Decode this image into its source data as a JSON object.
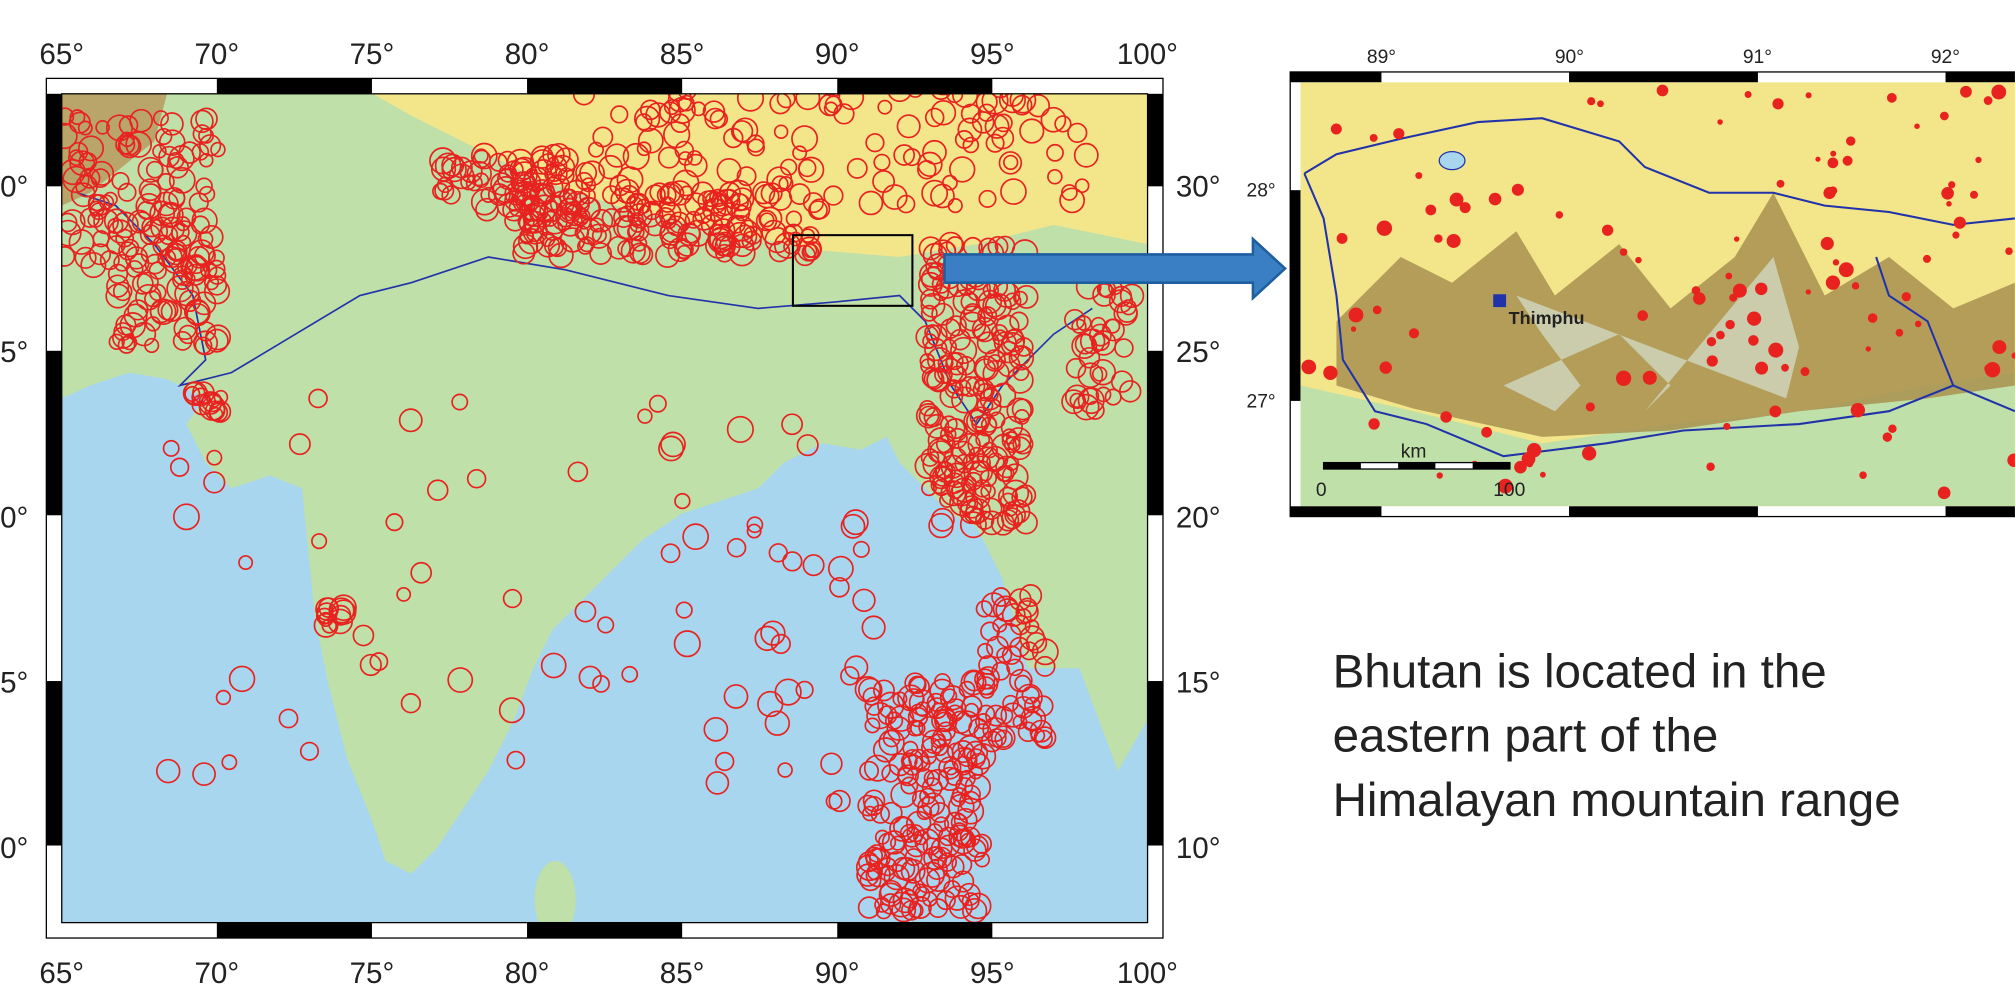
{
  "main_map": {
    "lon_labels_top": [
      "65°",
      "70°",
      "75°",
      "80°",
      "85°",
      "90°",
      "95°",
      "100°"
    ],
    "lon_labels_bottom": [
      "65°",
      "70°",
      "75°",
      "80°",
      "85°",
      "90°",
      "95°",
      "100°"
    ],
    "lat_labels_left": [
      "0°",
      "5°",
      "0°",
      "5°",
      "0°"
    ],
    "lat_labels_right": [
      "30°",
      "25°",
      "20°",
      "15°",
      "10°"
    ]
  },
  "inset": {
    "lon_labels": [
      "89°",
      "90°",
      "91°",
      "92°"
    ],
    "lat_labels": [
      "28°",
      "27°"
    ],
    "place": "Thimphu",
    "scale_unit": "km",
    "scale_start": "0",
    "scale_end": "100"
  },
  "caption": [
    "Bhutan is located in the",
    "eastern part of the",
    "Himalayan mountain range"
  ]
}
